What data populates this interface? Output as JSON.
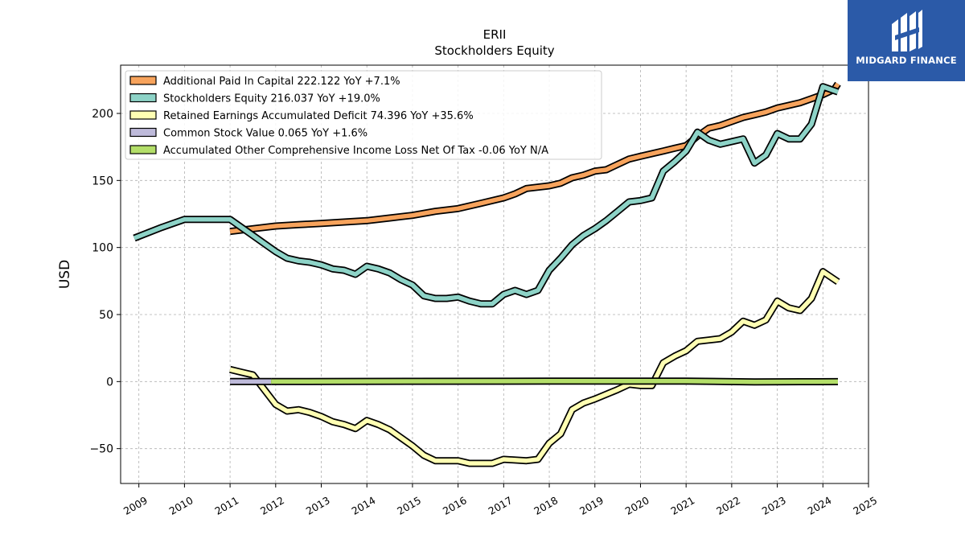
{
  "chart_data": {
    "type": "line",
    "title": "ERII",
    "subtitle": "Stockholders  Equity",
    "ylabel": "USD",
    "xlabel": "",
    "xlim": [
      2008.6,
      2025.0
    ],
    "ylim": [
      -76,
      236
    ],
    "grid": true,
    "legend_position": "top-left",
    "x_ticks": [
      "2009",
      "2010",
      "2011",
      "2012",
      "2013",
      "2014",
      "2015",
      "2016",
      "2017",
      "2018",
      "2019",
      "2020",
      "2021",
      "2022",
      "2023",
      "2024",
      "2025"
    ],
    "y_ticks": [
      -50,
      0,
      50,
      100,
      150,
      200
    ],
    "series": [
      {
        "name": "Additional Paid In Capital",
        "legend": "Additional Paid In Capital  222.122 YoY +7.1%",
        "color": "#f7a35c",
        "points": [
          [
            2011.0,
            112
          ],
          [
            2011.5,
            114
          ],
          [
            2012.0,
            116
          ],
          [
            2012.5,
            117
          ],
          [
            2013.0,
            118
          ],
          [
            2013.5,
            119
          ],
          [
            2014.0,
            120
          ],
          [
            2014.5,
            122
          ],
          [
            2014.75,
            123
          ],
          [
            2015.0,
            124
          ],
          [
            2015.5,
            127
          ],
          [
            2016.0,
            129
          ],
          [
            2016.5,
            133
          ],
          [
            2017.0,
            137
          ],
          [
            2017.25,
            140
          ],
          [
            2017.5,
            144
          ],
          [
            2018.0,
            146
          ],
          [
            2018.25,
            148
          ],
          [
            2018.5,
            152
          ],
          [
            2018.75,
            154
          ],
          [
            2019.0,
            157
          ],
          [
            2019.25,
            158
          ],
          [
            2019.5,
            162
          ],
          [
            2019.75,
            166
          ],
          [
            2020.0,
            168
          ],
          [
            2020.25,
            170
          ],
          [
            2020.5,
            172
          ],
          [
            2020.75,
            174
          ],
          [
            2021.0,
            176
          ],
          [
            2021.25,
            183
          ],
          [
            2021.5,
            189
          ],
          [
            2021.75,
            191
          ],
          [
            2022.0,
            194
          ],
          [
            2022.25,
            197
          ],
          [
            2022.5,
            199
          ],
          [
            2022.75,
            201
          ],
          [
            2023.0,
            204
          ],
          [
            2023.25,
            206
          ],
          [
            2023.5,
            208
          ],
          [
            2023.75,
            211
          ],
          [
            2024.0,
            214
          ],
          [
            2024.25,
            218
          ],
          [
            2024.33,
            222.1
          ]
        ]
      },
      {
        "name": "Stockholders Equity",
        "legend": "Stockholders Equity  216.037 YoY +19.0%",
        "color": "#8dd3c7",
        "points": [
          [
            2008.9,
            107
          ],
          [
            2009.5,
            115
          ],
          [
            2010.0,
            121
          ],
          [
            2010.5,
            121
          ],
          [
            2011.0,
            121
          ],
          [
            2011.25,
            115
          ],
          [
            2011.5,
            109
          ],
          [
            2011.75,
            103
          ],
          [
            2012.0,
            97
          ],
          [
            2012.25,
            92
          ],
          [
            2012.5,
            90
          ],
          [
            2012.75,
            89
          ],
          [
            2013.0,
            87
          ],
          [
            2013.25,
            84
          ],
          [
            2013.5,
            83
          ],
          [
            2013.75,
            80
          ],
          [
            2014.0,
            86
          ],
          [
            2014.25,
            84
          ],
          [
            2014.5,
            81
          ],
          [
            2014.75,
            76
          ],
          [
            2015.0,
            72
          ],
          [
            2015.25,
            64
          ],
          [
            2015.5,
            62
          ],
          [
            2015.75,
            62
          ],
          [
            2016.0,
            63
          ],
          [
            2016.25,
            60
          ],
          [
            2016.5,
            58
          ],
          [
            2016.75,
            58
          ],
          [
            2017.0,
            65
          ],
          [
            2017.25,
            68
          ],
          [
            2017.5,
            65
          ],
          [
            2017.75,
            68
          ],
          [
            2018.0,
            83
          ],
          [
            2018.25,
            92
          ],
          [
            2018.5,
            102
          ],
          [
            2018.75,
            109
          ],
          [
            2019.0,
            114
          ],
          [
            2019.25,
            120
          ],
          [
            2019.5,
            127
          ],
          [
            2019.75,
            134
          ],
          [
            2020.0,
            135
          ],
          [
            2020.25,
            137
          ],
          [
            2020.5,
            157
          ],
          [
            2020.75,
            164
          ],
          [
            2021.0,
            172
          ],
          [
            2021.25,
            186
          ],
          [
            2021.5,
            180
          ],
          [
            2021.75,
            177
          ],
          [
            2022.0,
            179
          ],
          [
            2022.25,
            181
          ],
          [
            2022.5,
            163
          ],
          [
            2022.75,
            169
          ],
          [
            2023.0,
            185
          ],
          [
            2023.25,
            181
          ],
          [
            2023.5,
            181
          ],
          [
            2023.75,
            192
          ],
          [
            2024.0,
            220
          ],
          [
            2024.33,
            216.0
          ]
        ]
      },
      {
        "name": "Retained Earnings Accumulated Deficit",
        "legend": "Retained Earnings Accumulated Deficit  74.396 YoY +35.6%",
        "color": "#ffffb3",
        "points": [
          [
            2011.0,
            9
          ],
          [
            2011.25,
            7
          ],
          [
            2011.5,
            5
          ],
          [
            2011.75,
            -6
          ],
          [
            2012.0,
            -17
          ],
          [
            2012.25,
            -22
          ],
          [
            2012.5,
            -21
          ],
          [
            2012.75,
            -23
          ],
          [
            2013.0,
            -26
          ],
          [
            2013.25,
            -30
          ],
          [
            2013.5,
            -32
          ],
          [
            2013.75,
            -35
          ],
          [
            2014.0,
            -29
          ],
          [
            2014.25,
            -32
          ],
          [
            2014.5,
            -36
          ],
          [
            2014.75,
            -42
          ],
          [
            2015.0,
            -48
          ],
          [
            2015.25,
            -55
          ],
          [
            2015.5,
            -59
          ],
          [
            2015.75,
            -59
          ],
          [
            2016.0,
            -59
          ],
          [
            2016.25,
            -61
          ],
          [
            2016.5,
            -61
          ],
          [
            2016.75,
            -61
          ],
          [
            2017.0,
            -58
          ],
          [
            2017.5,
            -59
          ],
          [
            2017.75,
            -58
          ],
          [
            2018.0,
            -46
          ],
          [
            2018.25,
            -39
          ],
          [
            2018.5,
            -21
          ],
          [
            2018.75,
            -16
          ],
          [
            2019.0,
            -13
          ],
          [
            2019.5,
            -6
          ],
          [
            2019.75,
            -2
          ],
          [
            2020.0,
            -3
          ],
          [
            2020.25,
            -3
          ],
          [
            2020.5,
            14
          ],
          [
            2020.75,
            19
          ],
          [
            2021.0,
            23
          ],
          [
            2021.25,
            30
          ],
          [
            2021.5,
            31
          ],
          [
            2021.75,
            32
          ],
          [
            2022.0,
            37
          ],
          [
            2022.25,
            45
          ],
          [
            2022.5,
            42
          ],
          [
            2022.75,
            46
          ],
          [
            2023.0,
            60
          ],
          [
            2023.25,
            55
          ],
          [
            2023.5,
            53
          ],
          [
            2023.75,
            62
          ],
          [
            2024.0,
            82
          ],
          [
            2024.33,
            74.4
          ]
        ]
      },
      {
        "name": "Common Stock Value",
        "legend": "Common Stock Value  0.065 YoY +1.6%",
        "color": "#bebada",
        "points": [
          [
            2011.0,
            0
          ],
          [
            2011.9,
            0
          ]
        ]
      },
      {
        "name": "Accumulated Other Comprehensive Income Loss Net Of Tax",
        "legend": "Accumulated Other Comprehensive Income Loss Net Of Tax  -0.06 YoY N/A",
        "color": "#b3de69",
        "points": [
          [
            2011.9,
            0
          ],
          [
            2015.0,
            0.2
          ],
          [
            2018.0,
            0.3
          ],
          [
            2021.0,
            0.4
          ],
          [
            2022.5,
            -0.3
          ],
          [
            2023.5,
            -0.1
          ],
          [
            2024.33,
            -0.06
          ]
        ]
      }
    ]
  },
  "brand": {
    "logo_text": "MIDGARD FINANCE",
    "logo_color": "#2b5aa8"
  }
}
